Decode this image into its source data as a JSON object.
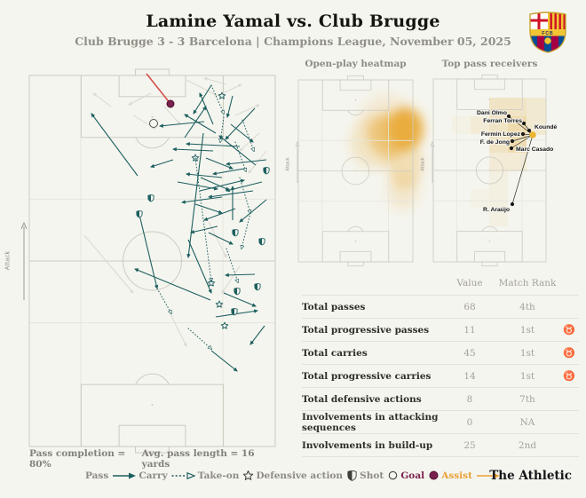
{
  "header": {
    "title": "Lamine Yamal vs. Club Brugge",
    "subtitle": "Club Brugge 3 - 3 Barcelona | Champions League, November 05, 2025",
    "crest_text": "FCB"
  },
  "main_pitch": {
    "attack_label": "Attack",
    "footer_left": "Pass completion = 80%",
    "footer_right": "Avg. pass length = 16 yards"
  },
  "heatmap_panel": {
    "title": "Open-play heatmap",
    "attack_label": "Attack"
  },
  "receivers_panel": {
    "title": "Top pass receivers",
    "attack_label": "Attack"
  },
  "stats_table": {
    "col_value": "Value",
    "col_rank": "Match Rank",
    "goat_icon": "♉",
    "rows": [
      {
        "label": "Total passes",
        "value": "68",
        "rank": "4th",
        "best": false
      },
      {
        "label": "Total progressive passes",
        "value": "11",
        "rank": "1st",
        "best": true
      },
      {
        "label": "Total carries",
        "value": "45",
        "rank": "1st",
        "best": true
      },
      {
        "label": "Total progressive carries",
        "value": "14",
        "rank": "1st",
        "best": true
      },
      {
        "label": "Total defensive actions",
        "value": "8",
        "rank": "7th",
        "best": false
      },
      {
        "label": "Involvements in attacking sequences",
        "value": "0",
        "rank": "NA",
        "best": false
      },
      {
        "label": "Involvements in build-up",
        "value": "25",
        "rank": "2nd",
        "best": false
      }
    ]
  },
  "legend": {
    "items": [
      {
        "label": "Pass",
        "type": "pass"
      },
      {
        "label": "Carry",
        "type": "carry"
      },
      {
        "label": "Take-on",
        "type": "takeon"
      },
      {
        "label": "Defensive action",
        "type": "defensive"
      },
      {
        "label": "Shot",
        "type": "shot"
      },
      {
        "label": "Goal",
        "type": "goal"
      },
      {
        "label": "Assist",
        "type": "assist"
      }
    ]
  },
  "branding": "The Athletic",
  "colors": {
    "background": "#f5f5ef",
    "teal": "#1d5f5f",
    "faded": "#d9d9d0",
    "red": "#d6514e",
    "goal": "#7b2150",
    "assist": "#e9a03a",
    "heat": "#e9ab3a",
    "heat_cell": "#edd49b",
    "accent_yellow": "#ecb52f",
    "pitch_line": "#ccccc3",
    "zone_line": "#e6e6dd",
    "dark": "#3f3f39"
  },
  "chart_data": [
    {
      "id": "pass_map",
      "type": "scatter",
      "title": "Pass, carry and action map (attacking up)",
      "xlim": [
        0,
        277
      ],
      "ylim": [
        0,
        418
      ],
      "footnotes": [
        "Pass completion = 80%",
        "Avg. pass length = 16 yards"
      ],
      "passes": [
        [
          122,
          113,
          70,
          43
        ],
        [
          255,
          101,
          214,
          68
        ],
        [
          205,
          11,
          185,
          43
        ],
        [
          229,
          23,
          223,
          47
        ],
        [
          210,
          65,
          175,
          44
        ],
        [
          197,
          52,
          147,
          57
        ],
        [
          227,
          55,
          252,
          75
        ],
        [
          267,
          95,
          222,
          100
        ],
        [
          237,
          80,
          177,
          77
        ],
        [
          207,
          85,
          162,
          83
        ],
        [
          199,
          93,
          229,
          105
        ],
        [
          242,
          105,
          207,
          111
        ],
        [
          217,
          115,
          177,
          111
        ],
        [
          193,
          115,
          225,
          129
        ],
        [
          262,
          120,
          222,
          130
        ],
        [
          252,
          130,
          202,
          137
        ],
        [
          217,
          137,
          172,
          143
        ],
        [
          187,
          145,
          217,
          155
        ],
        [
          232,
          150,
          197,
          163
        ],
        [
          267,
          140,
          237,
          165
        ],
        [
          212,
          170,
          182,
          177
        ],
        [
          202,
          177,
          229,
          190
        ],
        [
          124,
          157,
          144,
          240
        ],
        [
          204,
          253,
          119,
          218
        ],
        [
          179,
          185,
          205,
          245
        ],
        [
          219,
          245,
          255,
          260
        ],
        [
          210,
          272,
          257,
          265
        ],
        [
          205,
          310,
          234,
          333
        ],
        [
          265,
          282,
          249,
          303
        ],
        [
          207,
          55,
          192,
          20
        ],
        [
          175,
          70,
          199,
          35
        ],
        [
          229,
          163,
          229,
          125
        ],
        [
          162,
          95,
          137,
          103
        ],
        [
          254,
          37,
          221,
          72
        ],
        [
          192,
          130,
          242,
          118
        ],
        [
          167,
          120,
          212,
          128
        ],
        [
          254,
          224,
          221,
          225
        ],
        [
          196,
          65,
          179,
          205
        ]
      ],
      "carries": [
        [
          205,
          11,
          219,
          43
        ],
        [
          219,
          47,
          215,
          75
        ],
        [
          237,
          115,
          249,
          155
        ],
        [
          249,
          155,
          239,
          195
        ],
        [
          222,
          195,
          235,
          233
        ],
        [
          179,
          285,
          205,
          308
        ],
        [
          144,
          240,
          160,
          268
        ],
        [
          232,
          75,
          244,
          108
        ],
        [
          240,
          50,
          253,
          85
        ],
        [
          187,
          93,
          205,
          232
        ]
      ],
      "other_player_passes": [
        [
          177,
          5,
          212,
          23
        ],
        [
          212,
          23,
          239,
          10
        ],
        [
          232,
          45,
          259,
          33
        ],
        [
          259,
          65,
          237,
          85
        ],
        [
          267,
          85,
          247,
          110
        ],
        [
          222,
          10,
          197,
          3
        ],
        [
          137,
          20,
          112,
          33
        ],
        [
          117,
          45,
          142,
          60
        ],
        [
          202,
          165,
          222,
          205
        ],
        [
          237,
          215,
          217,
          245
        ],
        [
          62,
          180,
          117,
          245
        ],
        [
          157,
          265,
          177,
          305
        ],
        [
          92,
          35,
          72,
          20
        ],
        [
          152,
          35,
          170,
          55
        ]
      ],
      "shot_to_goal": [
        159,
        32,
        132,
        -2
      ],
      "goal_points": [
        [
          159,
          32
        ]
      ],
      "shots": [
        [
          140,
          54
        ]
      ],
      "take_ons": [
        [
          217,
          23
        ],
        [
          187,
          93
        ],
        [
          205,
          234
        ],
        [
          214,
          258
        ],
        [
          220,
          282
        ]
      ],
      "defensive_actions": [
        [
          137,
          138
        ],
        [
          124,
          156
        ],
        [
          232,
          177
        ],
        [
          262,
          187
        ],
        [
          267,
          107
        ],
        [
          234,
          243
        ],
        [
          257,
          238
        ],
        [
          231,
          266
        ]
      ]
    },
    {
      "id": "open_play_heatmap",
      "type": "heatmap",
      "title": "Open-play heatmap",
      "xlim": [
        0,
        129
      ],
      "ylim": [
        0,
        205
      ],
      "hotspots": [
        {
          "x": 121,
          "y": 55,
          "rx": 20,
          "ry": 24,
          "intensity": 0.95
        },
        {
          "x": 103,
          "y": 62,
          "rx": 24,
          "ry": 26,
          "intensity": 0.5
        },
        {
          "x": 86,
          "y": 70,
          "rx": 28,
          "ry": 30,
          "intensity": 0.22
        },
        {
          "x": 120,
          "y": 95,
          "rx": 20,
          "ry": 28,
          "intensity": 0.3
        },
        {
          "x": 118,
          "y": 125,
          "rx": 18,
          "ry": 22,
          "intensity": 0.18
        },
        {
          "x": 100,
          "y": 45,
          "rx": 30,
          "ry": 30,
          "intensity": 0.15
        }
      ]
    },
    {
      "id": "top_pass_receivers",
      "type": "scatter",
      "title": "Top pass receivers",
      "xlim": [
        0,
        127
      ],
      "ylim": [
        0,
        206
      ],
      "origin": {
        "x": 112,
        "y": 63
      },
      "receivers": [
        {
          "name": "Dani Olmo",
          "x": 85,
          "y": 42,
          "lx": 83,
          "ly": 40,
          "anchor": "end"
        },
        {
          "name": "Ferran Torres",
          "x": 102,
          "y": 50,
          "lx": 100,
          "ly": 49,
          "anchor": "end"
        },
        {
          "name": "Koundé",
          "x": 108,
          "y": 58,
          "lx": 114,
          "ly": 56,
          "anchor": "start"
        },
        {
          "name": "Fermin Lopez",
          "x": 101,
          "y": 62,
          "lx": 98,
          "ly": 64,
          "anchor": "end"
        },
        {
          "name": "F. de Jong",
          "x": 89,
          "y": 70,
          "lx": 86,
          "ly": 73,
          "anchor": "end"
        },
        {
          "name": "Marc Casado",
          "x": 88,
          "y": 78,
          "lx": 93,
          "ly": 81,
          "anchor": "start"
        },
        {
          "name": "R. Araújo",
          "x": 89,
          "y": 141,
          "lx": 86,
          "ly": 149,
          "anchor": "end"
        }
      ],
      "heat_cells": [
        {
          "x": 63,
          "y": 21,
          "w": 42,
          "h": 62,
          "o": 0.5
        },
        {
          "x": 105,
          "y": 21,
          "w": 22,
          "h": 42,
          "o": 0.35
        },
        {
          "x": 84,
          "y": 42,
          "w": 21,
          "h": 41,
          "o": 0.55
        },
        {
          "x": 42,
          "y": 42,
          "w": 21,
          "h": 20,
          "o": 0.3
        },
        {
          "x": 63,
          "y": 83,
          "w": 42,
          "h": 21,
          "o": 0.3
        },
        {
          "x": 21,
          "y": 42,
          "w": 21,
          "h": 20,
          "o": 0.12
        },
        {
          "x": 63,
          "y": 104,
          "w": 21,
          "h": 62,
          "o": 0.15
        },
        {
          "x": 42,
          "y": 124,
          "w": 21,
          "h": 21,
          "o": 0.1
        }
      ]
    },
    {
      "id": "match_stats",
      "type": "table",
      "columns": [
        "",
        "Value",
        "Match Rank"
      ],
      "rows": [
        [
          "Total passes",
          "68",
          "4th"
        ],
        [
          "Total progressive passes",
          "11",
          "1st"
        ],
        [
          "Total carries",
          "45",
          "1st"
        ],
        [
          "Total progressive carries",
          "14",
          "1st"
        ],
        [
          "Total defensive actions",
          "8",
          "7th"
        ],
        [
          "Involvements in attacking sequences",
          "0",
          "NA"
        ],
        [
          "Involvements in build-up",
          "25",
          "2nd"
        ]
      ]
    }
  ]
}
